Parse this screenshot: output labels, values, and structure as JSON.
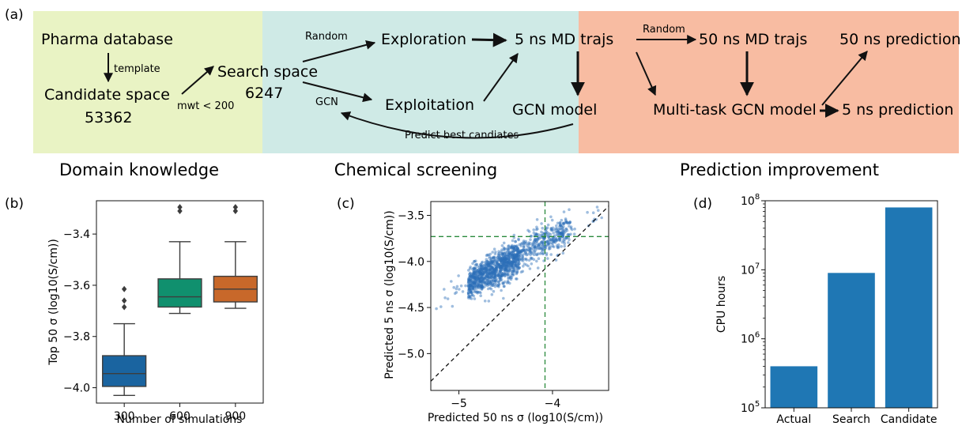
{
  "panel_labels": {
    "a": "(a)",
    "b": "(b)",
    "c": "(c)",
    "d": "(d)"
  },
  "colors": {
    "domain_bg": "#e9f3c4",
    "screening_bg": "#cfeae6",
    "prediction_bg": "#f8bca2",
    "blue": "#1f77b4",
    "box_blue": "#1a64a0",
    "box_green": "#10906e",
    "box_orange": "#c8682a",
    "scatter": "#2c6fb7",
    "green_dash": "#2a8a3c"
  },
  "flowchart": {
    "sections": {
      "domain": "Domain knowledge",
      "screening": "Chemical screening",
      "prediction": "Prediction improvement"
    },
    "nodes": {
      "pharma": "Pharma database",
      "candidate": "Candidate space",
      "candidate_n": "53362",
      "search": "Search space",
      "search_n": "6247",
      "exploration": "Exploration",
      "exploitation": "Exploitation",
      "md5": "5 ns MD trajs",
      "gcn": "GCN model",
      "md50": "50 ns MD trajs",
      "mtgcn": "Multi-task GCN model",
      "pred50": "50 ns prediction",
      "pred5": "5 ns prediction"
    },
    "edge_labels": {
      "template": "template",
      "mwt": "mwt < 200",
      "random1": "Random",
      "gcn": "GCN",
      "random2": "Random",
      "predict": "Predict best candiates"
    }
  },
  "chart_data": [
    {
      "panel": "b",
      "type": "box",
      "xlabel": "Number of simulations",
      "ylabel": "Top 50 σ (log10(S/cm))",
      "categories": [
        "300",
        "600",
        "900"
      ],
      "ylim": [
        -4.06,
        -3.27
      ],
      "yticks": [
        -4.0,
        -3.8,
        -3.6,
        -3.4
      ],
      "ytick_labels": [
        "−4.0",
        "−3.8",
        "−3.6",
        "−3.4"
      ],
      "boxes": [
        {
          "category": "300",
          "whisker_low": -4.03,
          "q1": -3.995,
          "median": -3.945,
          "q3": -3.875,
          "whisker_high": -3.75,
          "outliers": [
            -3.615,
            -3.66,
            -3.685
          ]
        },
        {
          "category": "600",
          "whisker_low": -3.71,
          "q1": -3.685,
          "median": -3.645,
          "q3": -3.575,
          "whisker_high": -3.43,
          "outliers": [
            -3.295,
            -3.31
          ]
        },
        {
          "category": "900",
          "whisker_low": -3.69,
          "q1": -3.665,
          "median": -3.615,
          "q3": -3.565,
          "whisker_high": -3.43,
          "outliers": [
            -3.295,
            -3.31
          ]
        }
      ]
    },
    {
      "panel": "c",
      "type": "scatter",
      "xlabel": "Predicted 50 ns σ (log10(S/cm))",
      "ylabel": "Predicted 5 ns σ (log10(S/cm))",
      "xlim": [
        -5.3,
        -3.4
      ],
      "ylim": [
        -5.4,
        -3.35
      ],
      "xticks": [
        -5.0,
        -4.0
      ],
      "xtick_labels": [
        "−5",
        "−4"
      ],
      "yticks": [
        -5.0,
        -4.5,
        -4.0,
        -3.5
      ],
      "ytick_labels": [
        "−5.0",
        "−4.5",
        "−4.0",
        "−3.5"
      ],
      "cluster": {
        "x_range": [
          -5.25,
          -3.45
        ],
        "slope": 0.55,
        "intercept": -1.55,
        "spread": 0.09,
        "n_points": 1400
      },
      "reference_lines": {
        "vertical_x": -4.08,
        "horizontal_y": -3.73,
        "diagonal": "y = x"
      }
    },
    {
      "panel": "d",
      "type": "bar",
      "ylabel": "CPU hours",
      "scale": "log",
      "categories": [
        "Actual",
        "Search",
        "Candidate"
      ],
      "values": [
        400000,
        9000000,
        80000000
      ],
      "ylim": [
        100000,
        100000000
      ],
      "ytick_labels": [
        {
          "base": "10",
          "exp": "5"
        },
        {
          "base": "10",
          "exp": "6"
        },
        {
          "base": "10",
          "exp": "7"
        },
        {
          "base": "10",
          "exp": "8"
        }
      ]
    }
  ]
}
